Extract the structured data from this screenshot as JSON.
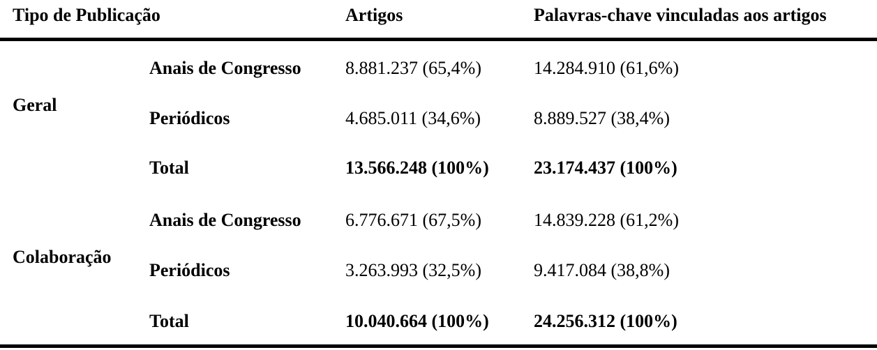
{
  "headers": [
    "Tipo de Publicação",
    "Artigos",
    "Palavras-chave vinculadas aos artigos"
  ],
  "groups": [
    {
      "label": "Geral",
      "rows": [
        {
          "type": "Anais de Congresso",
          "artigos": "8.881.237 (65,4%)",
          "palavras": "14.284.910 (61,6%)"
        },
        {
          "type": "Periódicos",
          "artigos": "4.685.011 (34,6%)",
          "palavras": "8.889.527 (38,4%)"
        },
        {
          "type": "Total",
          "artigos": "13.566.248 (100%)",
          "palavras": "23.174.437 (100%)"
        }
      ]
    },
    {
      "label": "Colaboração",
      "rows": [
        {
          "type": "Anais de Congresso",
          "artigos": "6.776.671 (67,5%)",
          "palavras": "14.839.228 (61,2%)"
        },
        {
          "type": "Periódicos",
          "artigos": "3.263.993 (32,5%)",
          "palavras": "9.417.084 (38,8%)"
        },
        {
          "type": "Total",
          "artigos": "10.040.664 (100%)",
          "palavras": "24.256.312 (100%)"
        }
      ]
    }
  ]
}
